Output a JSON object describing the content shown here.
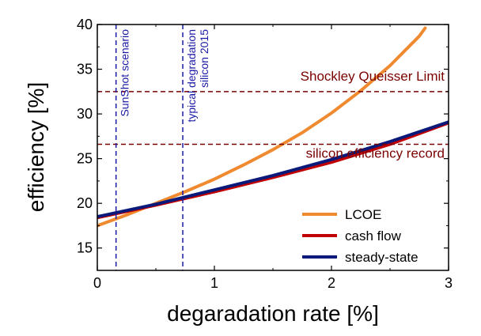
{
  "chart_data": {
    "type": "line",
    "xlabel": "degaradation rate [%]",
    "ylabel": "efficiency [%]",
    "xlim": [
      0,
      3
    ],
    "ylim": [
      12.5,
      40
    ],
    "xticks": [
      0,
      1,
      2,
      3
    ],
    "yticks": [
      15,
      20,
      25,
      30,
      35,
      40
    ],
    "grid": false,
    "legend_position": "bottom-right",
    "series": [
      {
        "name": "LCOE",
        "color": "#f08a30",
        "x": [
          0,
          0.25,
          0.5,
          0.75,
          1.0,
          1.25,
          1.5,
          1.75,
          2.0,
          2.25,
          2.5,
          2.75,
          2.8
        ],
        "y": [
          17.5,
          18.7,
          20.0,
          21.3,
          22.7,
          24.3,
          26.0,
          27.9,
          30.1,
          32.6,
          35.4,
          38.7,
          39.6
        ]
      },
      {
        "name": "cash flow",
        "color": "#c00000",
        "x": [
          0,
          0.5,
          1.0,
          1.5,
          2.0,
          2.5,
          3.0
        ],
        "y": [
          18.4,
          19.8,
          21.3,
          22.9,
          24.6,
          26.6,
          29.0
        ]
      },
      {
        "name": "steady-state",
        "color": "#0a1a7a",
        "x": [
          0,
          0.5,
          1.0,
          1.5,
          2.0,
          2.5,
          3.0
        ],
        "y": [
          18.5,
          19.9,
          21.5,
          23.1,
          24.9,
          26.9,
          29.1
        ]
      }
    ],
    "hlines": [
      {
        "y": 32.5,
        "label": "Shockley Queisser Limit",
        "color": "#7a0000"
      },
      {
        "y": 26.6,
        "label": "silicon efficiency record",
        "color": "#7a0000"
      }
    ],
    "vlines": [
      {
        "x": 0.16,
        "label": "SunShot scenario",
        "color": "#1a1aa6"
      },
      {
        "x": 0.73,
        "label": "typical degradation silicon 2015",
        "color": "#1a1aa6"
      }
    ]
  }
}
